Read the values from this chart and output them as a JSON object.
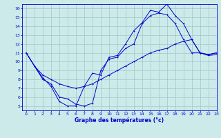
{
  "title": "Graphe des températures (°c)",
  "bg_color": "#cceaea",
  "grid_color": "#aacccc",
  "line_color": "#0000cc",
  "xlim": [
    -0.5,
    23
  ],
  "ylim": [
    4.5,
    16.5
  ],
  "xticks": [
    0,
    1,
    2,
    3,
    4,
    5,
    6,
    7,
    8,
    9,
    10,
    11,
    12,
    13,
    14,
    15,
    16,
    17,
    18,
    19,
    20,
    21,
    22,
    23
  ],
  "yticks": [
    5,
    6,
    7,
    8,
    9,
    10,
    11,
    12,
    13,
    14,
    15,
    16
  ],
  "series1_x": [
    0,
    1,
    2,
    3,
    4,
    5,
    6,
    7,
    8,
    9,
    10,
    11,
    12,
    13,
    14,
    15,
    16,
    17,
    18,
    19,
    20,
    21,
    22,
    23
  ],
  "series1_y": [
    11,
    9.5,
    8.2,
    7.2,
    5.5,
    5.0,
    5.0,
    7.2,
    8.7,
    8.5,
    10.5,
    10.7,
    12.0,
    13.5,
    14.4,
    15.8,
    15.6,
    16.5,
    15.2,
    14.3,
    12.5,
    11.0,
    10.8,
    11.0
  ],
  "series2_x": [
    0,
    1,
    2,
    3,
    4,
    5,
    6,
    7,
    8,
    9,
    10,
    11,
    12,
    13,
    14,
    15,
    16,
    17,
    18,
    19,
    20,
    21,
    22,
    23
  ],
  "series2_y": [
    11,
    9.5,
    8.5,
    8.0,
    7.5,
    7.2,
    7.0,
    7.2,
    7.5,
    8.0,
    8.5,
    9.0,
    9.5,
    10.0,
    10.5,
    11.0,
    11.3,
    11.5,
    12.0,
    12.3,
    12.5,
    11.0,
    10.7,
    10.8
  ],
  "series3_x": [
    0,
    2,
    3,
    4,
    5,
    6,
    7,
    8,
    9,
    10,
    11,
    12,
    13,
    14,
    15,
    16,
    17,
    18,
    19,
    20,
    21,
    22,
    23
  ],
  "series3_y": [
    11,
    8.0,
    7.5,
    6.0,
    5.8,
    5.2,
    5.0,
    5.3,
    9.0,
    10.3,
    10.5,
    11.5,
    12.0,
    14.3,
    15.2,
    15.5,
    15.3,
    14.3,
    12.5,
    11.0,
    11.0,
    10.8,
    11.0
  ]
}
